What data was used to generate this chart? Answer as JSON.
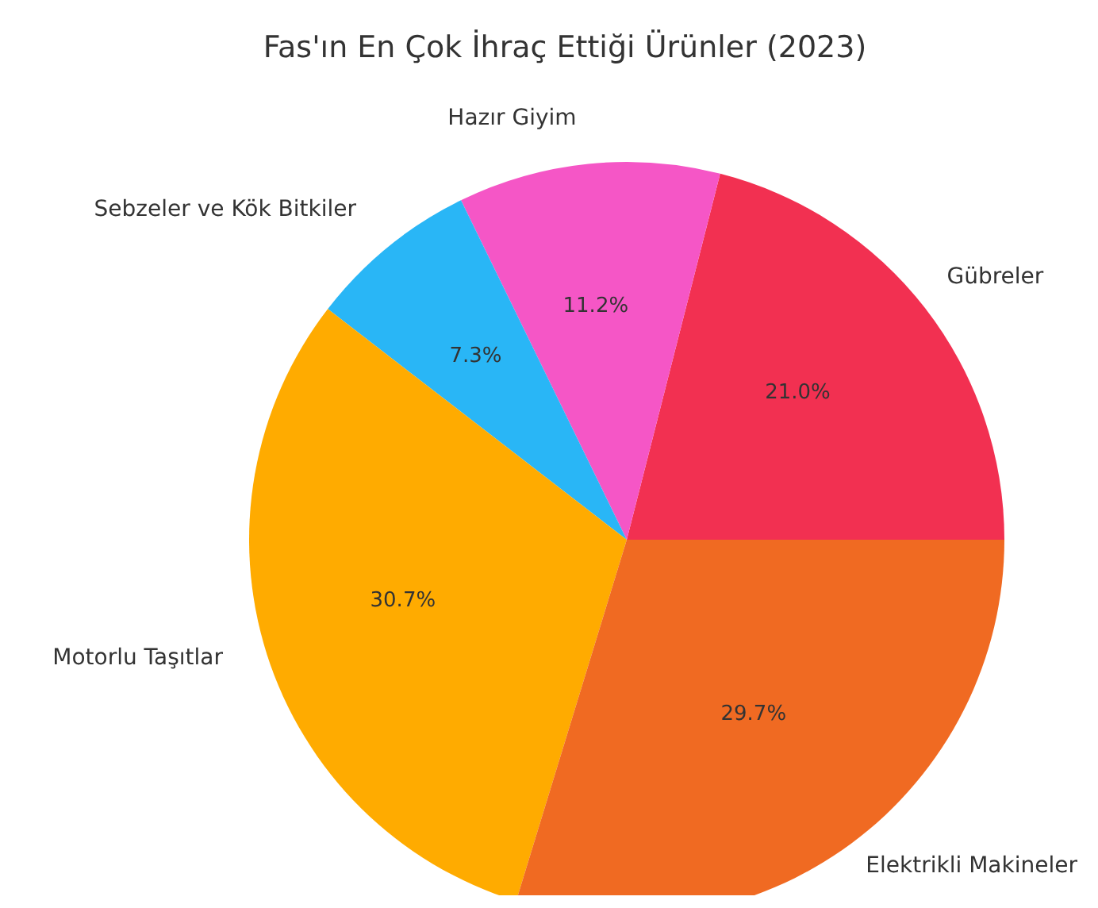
{
  "chart_data": {
    "type": "pie",
    "title": "Fas'ın En Çok İhraç Ettiği Ürünler (2023)",
    "categories": [
      "Gübreler",
      "Hazır Giyim",
      "Sebzeler ve Kök Bitkiler",
      "Motorlu Taşıtlar",
      "Elektrikli Makineler"
    ],
    "values": [
      21.0,
      11.2,
      7.3,
      30.7,
      29.7
    ],
    "value_labels": [
      "21.0%",
      "11.2%",
      "7.3%",
      "30.7%",
      "29.7%"
    ],
    "colors": [
      "#f23051",
      "#f556c6",
      "#29b6f6",
      "#ffab00",
      "#f06a22"
    ],
    "legend": false
  }
}
